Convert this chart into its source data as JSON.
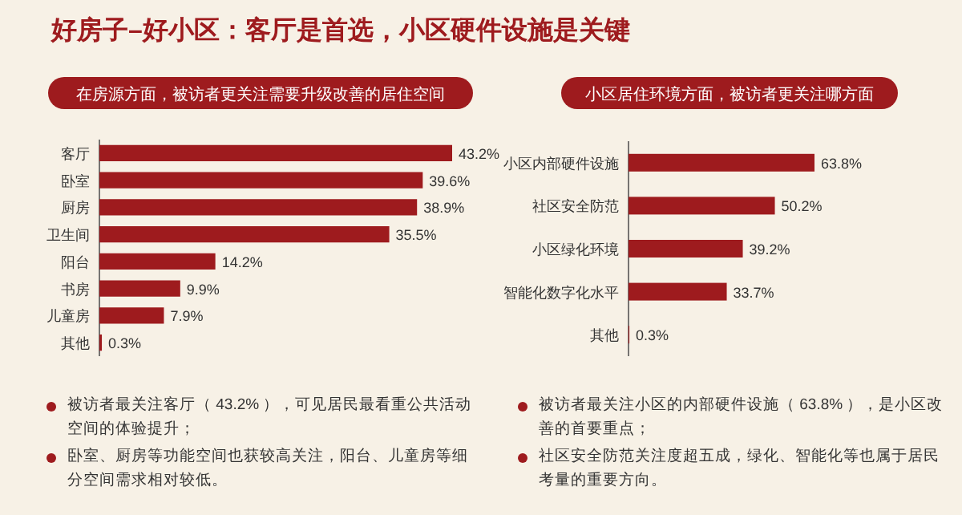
{
  "chart_data": [
    {
      "type": "bar",
      "orientation": "horizontal",
      "title": "在房源方面，被访者更关注需要升级改善的居住空间",
      "categories": [
        "客厅",
        "卧室",
        "厨房",
        "卫生间",
        "阳台",
        "书房",
        "儿童房",
        "其他"
      ],
      "values": [
        43.2,
        39.6,
        38.9,
        35.5,
        14.2,
        9.9,
        7.9,
        0.3
      ],
      "color": "#9e1b1e",
      "value_labels": [
        "43.2%",
        "39.6%",
        "38.9%",
        "35.5%",
        "14.2%",
        "9.9%",
        "7.9%",
        "0.3%"
      ],
      "annotations": [
        "好房子–好小区：客厅是首选，小区硬件设施是关键",
        "被访者最关注客厅（ 43.2% ），可见居民最看重公共活动空间的体验提升；",
        "卧室、厨房等功能空间也获较高关注，阳台、儿童房等细分空间需求相对较低。"
      ]
    },
    {
      "type": "bar",
      "orientation": "horizontal",
      "title": "小区居住环境方面，被访者更关注哪方面",
      "categories": [
        "小区内部硬件设施",
        "社区安全防范",
        "小区绿化环境",
        "智能化数字化水平",
        "其他"
      ],
      "values": [
        63.8,
        50.2,
        39.2,
        33.7,
        0.3
      ],
      "color": "#9e1b1e",
      "value_labels": [
        "63.8%",
        "50.2%",
        "39.2%",
        "33.7%",
        "0.3%"
      ],
      "annotations": [
        "被访者最关注小区的内部硬件设施（ 63.8% ），是小区改善的首要重点；",
        "社区安全防范关注度超五成，绿化、智能化等也属于居民考量的重要方向。"
      ]
    }
  ]
}
